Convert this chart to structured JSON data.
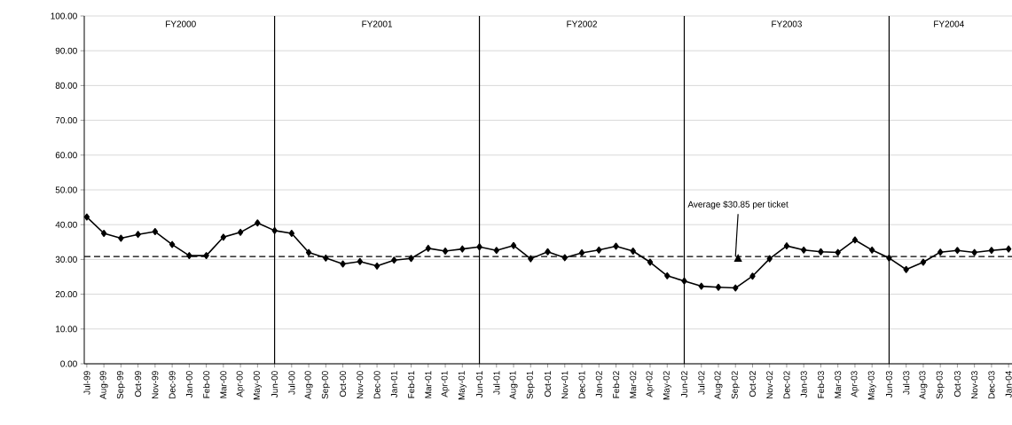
{
  "chart_data": {
    "type": "line",
    "categories": [
      "Jul-99",
      "Aug-99",
      "Sep-99",
      "Oct-99",
      "Nov-99",
      "Dec-99",
      "Jan-00",
      "Feb-00",
      "Mar-00",
      "Apr-00",
      "May-00",
      "Jun-00",
      "Jul-00",
      "Aug-00",
      "Sep-00",
      "Oct-00",
      "Nov-00",
      "Dec-00",
      "Jan-01",
      "Feb-01",
      "Mar-01",
      "Apr-01",
      "May-01",
      "Jun-01",
      "Jul-01",
      "Aug-01",
      "Sep-01",
      "Oct-01",
      "Nov-01",
      "Dec-01",
      "Jan-02",
      "Feb-02",
      "Mar-02",
      "Apr-02",
      "May-02",
      "Jun-02",
      "Jul-02",
      "Aug-02",
      "Sep-02",
      "Oct-02",
      "Nov-02",
      "Dec-02",
      "Jan-03",
      "Feb-03",
      "Mar-03",
      "Apr-03",
      "May-03",
      "Jun-03",
      "Jul-03",
      "Aug-03",
      "Sep-03",
      "Oct-03",
      "Nov-03",
      "Dec-03",
      "Jan-04"
    ],
    "series": [
      {
        "color": "#000000",
        "values": [
          42.2,
          37.5,
          36.1,
          37.2,
          38.0,
          34.3,
          31.1,
          31.1,
          36.4,
          37.8,
          40.5,
          38.3,
          37.5,
          32.0,
          30.4,
          28.7,
          29.4,
          28.1,
          29.8,
          30.3,
          33.2,
          32.4,
          33.0,
          33.6,
          32.6,
          34.0,
          30.2,
          32.2,
          30.5,
          31.9,
          32.7,
          33.8,
          32.4,
          29.2,
          25.3,
          23.8,
          22.3,
          22.0,
          21.8,
          25.2,
          30.2,
          33.9,
          32.7,
          32.2,
          32.0,
          35.6,
          32.7,
          30.4,
          27.1,
          29.2,
          32.1,
          32.6,
          32.0,
          32.6,
          33.0
        ]
      }
    ],
    "ylim": [
      0,
      100
    ],
    "yticks": [
      {
        "value": 0,
        "label": "0.00"
      },
      {
        "value": 10,
        "label": "10.00"
      },
      {
        "value": 20,
        "label": "20.00"
      },
      {
        "value": 30,
        "label": "30.00"
      },
      {
        "value": 40,
        "label": "40.00"
      },
      {
        "value": 50,
        "label": "50.00"
      },
      {
        "value": 60,
        "label": "60.00"
      },
      {
        "value": 70,
        "label": "70.00"
      },
      {
        "value": 80,
        "label": "80.00"
      },
      {
        "value": 90,
        "label": "90.00"
      },
      {
        "value": 100,
        "label": "100.00"
      }
    ],
    "grid": "y",
    "marker": "diamond",
    "ref_lines": [
      {
        "axis": "y",
        "value": 30.85,
        "line_style": "dashed",
        "color": "#000000"
      },
      {
        "axis": "x",
        "value": "Jun-00",
        "color": "#000000"
      },
      {
        "axis": "x",
        "value": "Jun-01",
        "color": "#000000"
      },
      {
        "axis": "x",
        "value": "Jun-02",
        "color": "#000000"
      },
      {
        "axis": "x",
        "value": "Jun-03",
        "color": "#000000"
      }
    ],
    "annotations": [
      "FY2000",
      "FY2001",
      "FY2002",
      "FY2003",
      "FY2004",
      {
        "text": "Average $30.85 per ticket",
        "x": "Sep-02",
        "y": 30.85
      }
    ]
  }
}
